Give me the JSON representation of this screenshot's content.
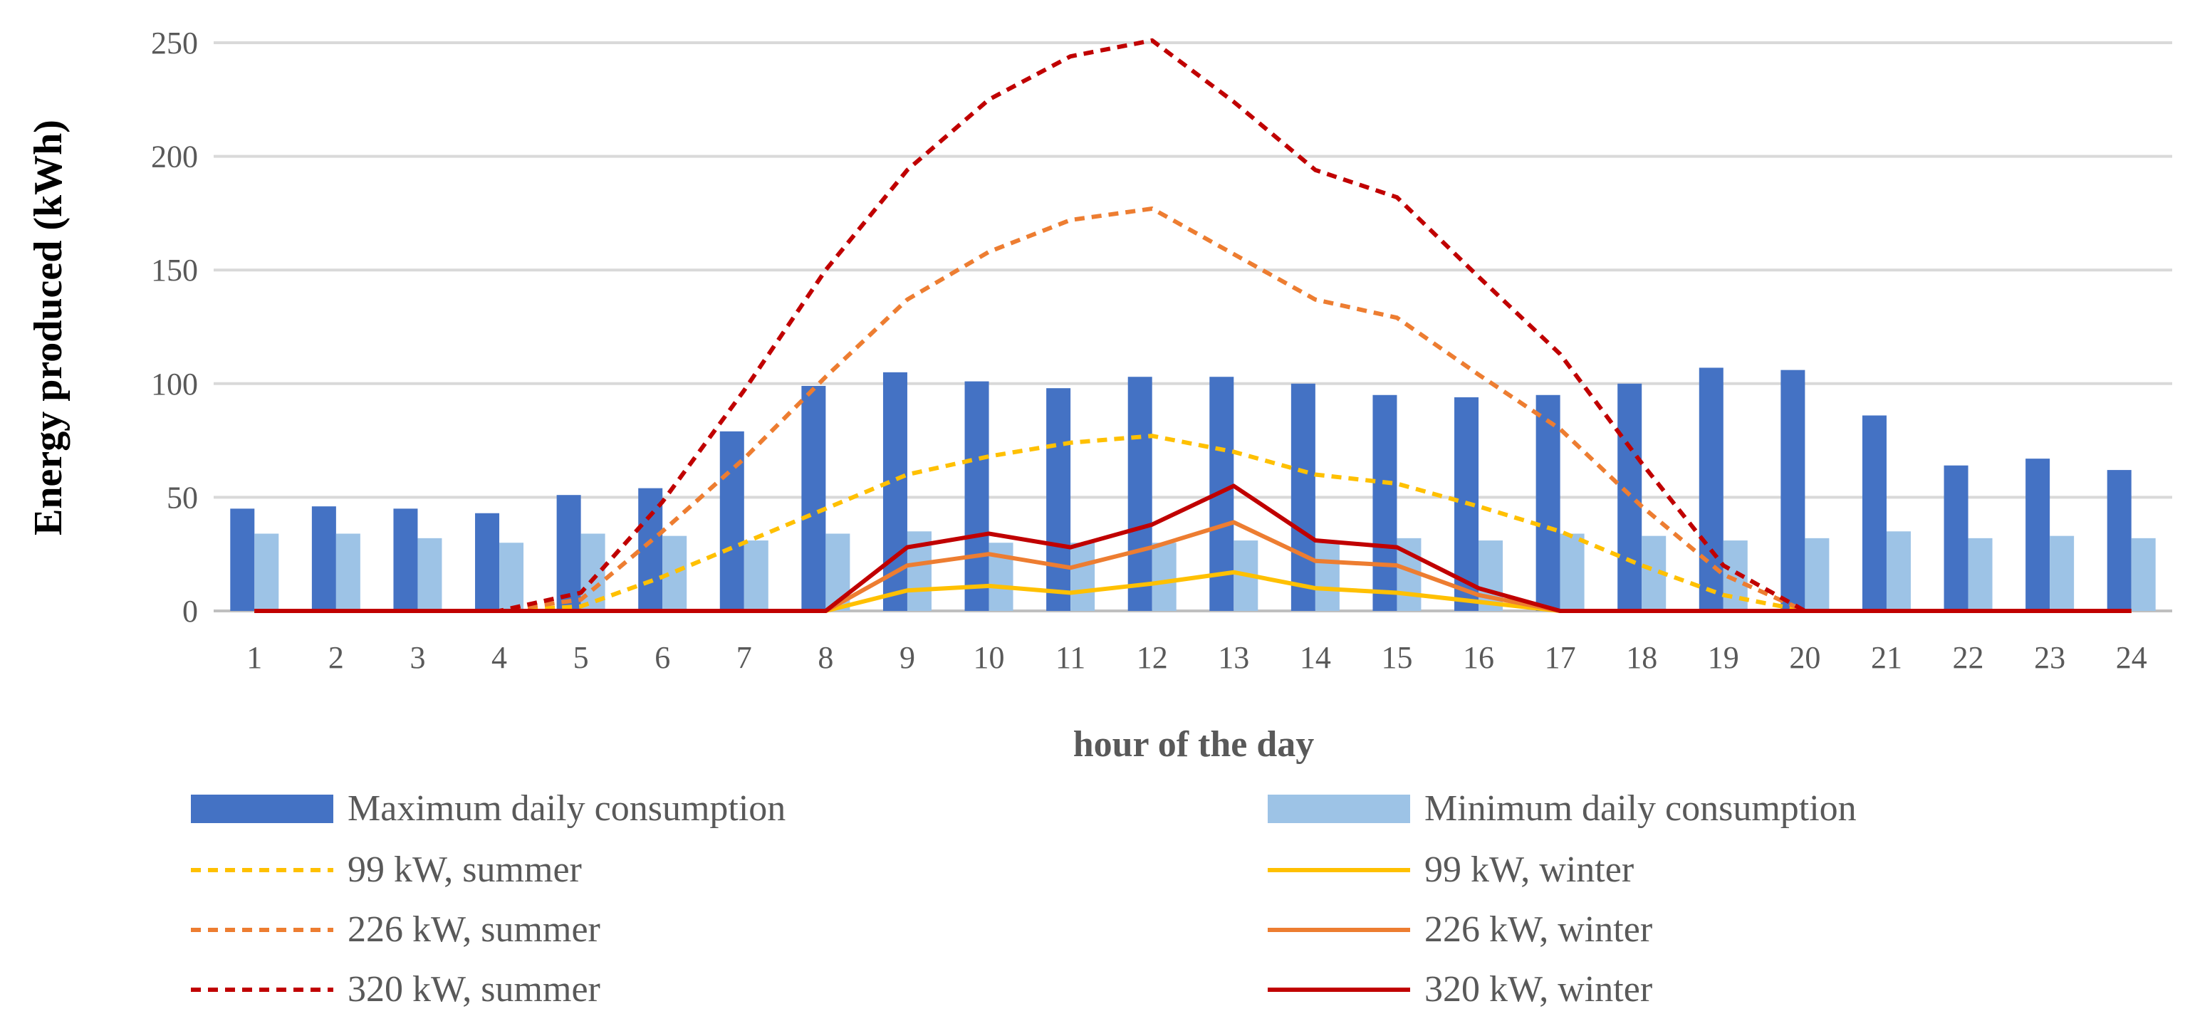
{
  "chart_data": {
    "type": "bar",
    "title": "",
    "xlabel": "hour of the day",
    "ylabel": "Energy produced (kWh)",
    "ylim": [
      0,
      250
    ],
    "yticks": [
      0,
      50,
      100,
      150,
      200,
      250
    ],
    "grid": true,
    "categories": [
      "1",
      "2",
      "3",
      "4",
      "5",
      "6",
      "7",
      "8",
      "9",
      "10",
      "11",
      "12",
      "13",
      "14",
      "15",
      "16",
      "17",
      "18",
      "19",
      "20",
      "21",
      "22",
      "23",
      "24"
    ],
    "bar_series": [
      {
        "name": "Maximum daily consumption",
        "color": "#4472C4",
        "values": [
          45,
          46,
          45,
          43,
          51,
          54,
          79,
          99,
          105,
          101,
          98,
          103,
          103,
          100,
          95,
          94,
          95,
          100,
          107,
          106,
          86,
          64,
          67,
          62
        ]
      },
      {
        "name": "Minimum daily consumption",
        "color": "#9DC3E6",
        "values": [
          34,
          34,
          32,
          30,
          34,
          33,
          31,
          34,
          35,
          30,
          30,
          30,
          31,
          30,
          32,
          31,
          34,
          33,
          31,
          32,
          35,
          32,
          33,
          32
        ]
      }
    ],
    "line_series": [
      {
        "name": "99 kW, summer",
        "color": "#FFC000",
        "dash": true,
        "values": [
          0,
          0,
          0,
          0,
          2,
          15,
          30,
          45,
          60,
          68,
          74,
          77,
          70,
          60,
          56,
          46,
          35,
          20,
          7,
          0,
          0,
          0,
          0,
          0
        ]
      },
      {
        "name": "99 kW, winter",
        "color": "#FFC000",
        "dash": false,
        "values": [
          0,
          0,
          0,
          0,
          0,
          0,
          0,
          0,
          9,
          11,
          8,
          12,
          17,
          10,
          8,
          4,
          0,
          0,
          0,
          0,
          0,
          0,
          0,
          0
        ]
      },
      {
        "name": "226 kW, summer",
        "color": "#ED7D31",
        "dash": true,
        "values": [
          0,
          0,
          0,
          0,
          5,
          35,
          67,
          103,
          137,
          158,
          172,
          177,
          157,
          137,
          129,
          104,
          80,
          46,
          16,
          0,
          0,
          0,
          0,
          0
        ]
      },
      {
        "name": "226 kW, winter",
        "color": "#ED7D31",
        "dash": false,
        "values": [
          0,
          0,
          0,
          0,
          0,
          0,
          0,
          0,
          20,
          25,
          19,
          28,
          39,
          22,
          20,
          7,
          0,
          0,
          0,
          0,
          0,
          0,
          0,
          0
        ]
      },
      {
        "name": "320 kW, summer",
        "color": "#C00000",
        "dash": true,
        "values": [
          0,
          0,
          0,
          0,
          8,
          48,
          97,
          150,
          194,
          225,
          244,
          251,
          224,
          194,
          182,
          147,
          113,
          65,
          20,
          0,
          0,
          0,
          0,
          0
        ]
      },
      {
        "name": "320 kW, winter",
        "color": "#C00000",
        "dash": false,
        "values": [
          0,
          0,
          0,
          0,
          0,
          0,
          0,
          0,
          28,
          34,
          28,
          38,
          55,
          31,
          28,
          10,
          0,
          0,
          0,
          0,
          0,
          0,
          0,
          0
        ]
      }
    ],
    "legend": {
      "placement": "bottom",
      "entries": [
        {
          "label": "Maximum daily consumption",
          "kind": "bar",
          "color": "#4472C4"
        },
        {
          "label": "Minimum daily consumption",
          "kind": "bar",
          "color": "#9DC3E6"
        },
        {
          "label": "99 kW, summer",
          "kind": "dash",
          "color": "#FFC000"
        },
        {
          "label": "99 kW, winter",
          "kind": "line",
          "color": "#FFC000"
        },
        {
          "label": "226 kW, summer",
          "kind": "dash",
          "color": "#ED7D31"
        },
        {
          "label": "226 kW, winter",
          "kind": "line",
          "color": "#ED7D31"
        },
        {
          "label": "320 kW, summer",
          "kind": "dash",
          "color": "#C00000"
        },
        {
          "label": "320 kW, winter",
          "kind": "line",
          "color": "#C00000"
        }
      ]
    }
  }
}
